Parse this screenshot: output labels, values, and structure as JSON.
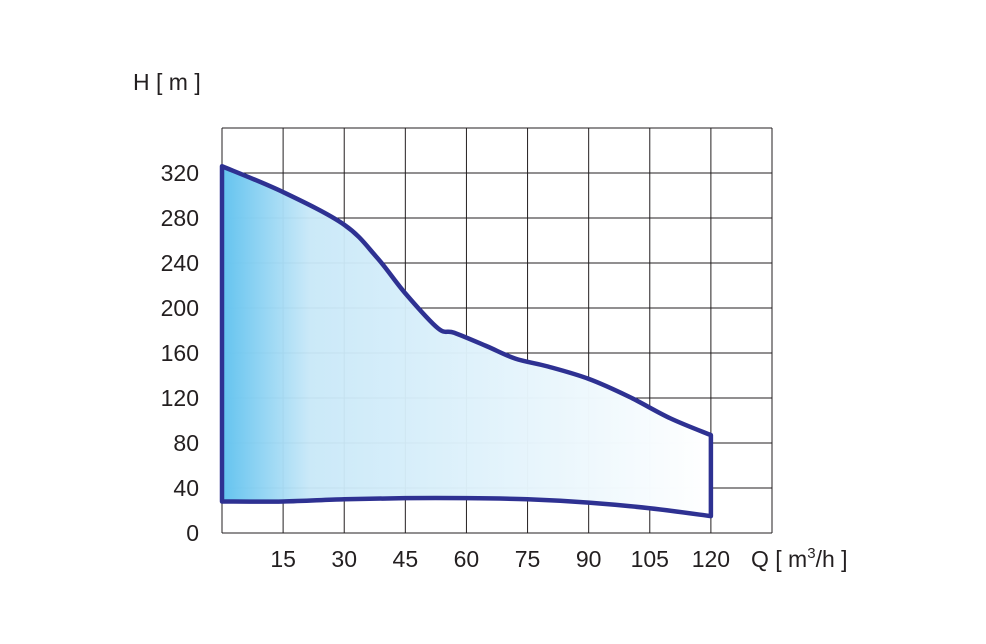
{
  "chart_data": {
    "type": "area",
    "title": "",
    "ylabel": "H [ m ]",
    "xlabel": {
      "prefix": "Q [ m",
      "sup": "3",
      "suffix": "/h ]"
    },
    "x_ticks": [
      15,
      30,
      45,
      60,
      75,
      90,
      105,
      120
    ],
    "y_ticks": [
      0,
      40,
      80,
      120,
      160,
      200,
      240,
      280,
      320
    ],
    "xlim": [
      0,
      135
    ],
    "ylim": [
      0,
      360
    ],
    "grid": true,
    "upper_curve": [
      {
        "x": 0,
        "y": 326
      },
      {
        "x": 15,
        "y": 303
      },
      {
        "x": 30,
        "y": 274
      },
      {
        "x": 38,
        "y": 245
      },
      {
        "x": 45,
        "y": 213
      },
      {
        "x": 53,
        "y": 182
      },
      {
        "x": 57,
        "y": 178
      },
      {
        "x": 65,
        "y": 166
      },
      {
        "x": 72,
        "y": 155
      },
      {
        "x": 80,
        "y": 148
      },
      {
        "x": 90,
        "y": 137
      },
      {
        "x": 100,
        "y": 121
      },
      {
        "x": 110,
        "y": 102
      },
      {
        "x": 120,
        "y": 87
      }
    ],
    "lower_curve": [
      {
        "x": 0,
        "y": 28
      },
      {
        "x": 15,
        "y": 28
      },
      {
        "x": 30,
        "y": 30
      },
      {
        "x": 45,
        "y": 31
      },
      {
        "x": 60,
        "y": 31
      },
      {
        "x": 75,
        "y": 30
      },
      {
        "x": 90,
        "y": 27
      },
      {
        "x": 105,
        "y": 22
      },
      {
        "x": 120,
        "y": 15
      }
    ],
    "colors": {
      "outline": "#2e3192",
      "fill_left": "#63c3ef",
      "fill_right": "#ffffff",
      "grid": "#231f20",
      "text": "#231f20"
    }
  }
}
